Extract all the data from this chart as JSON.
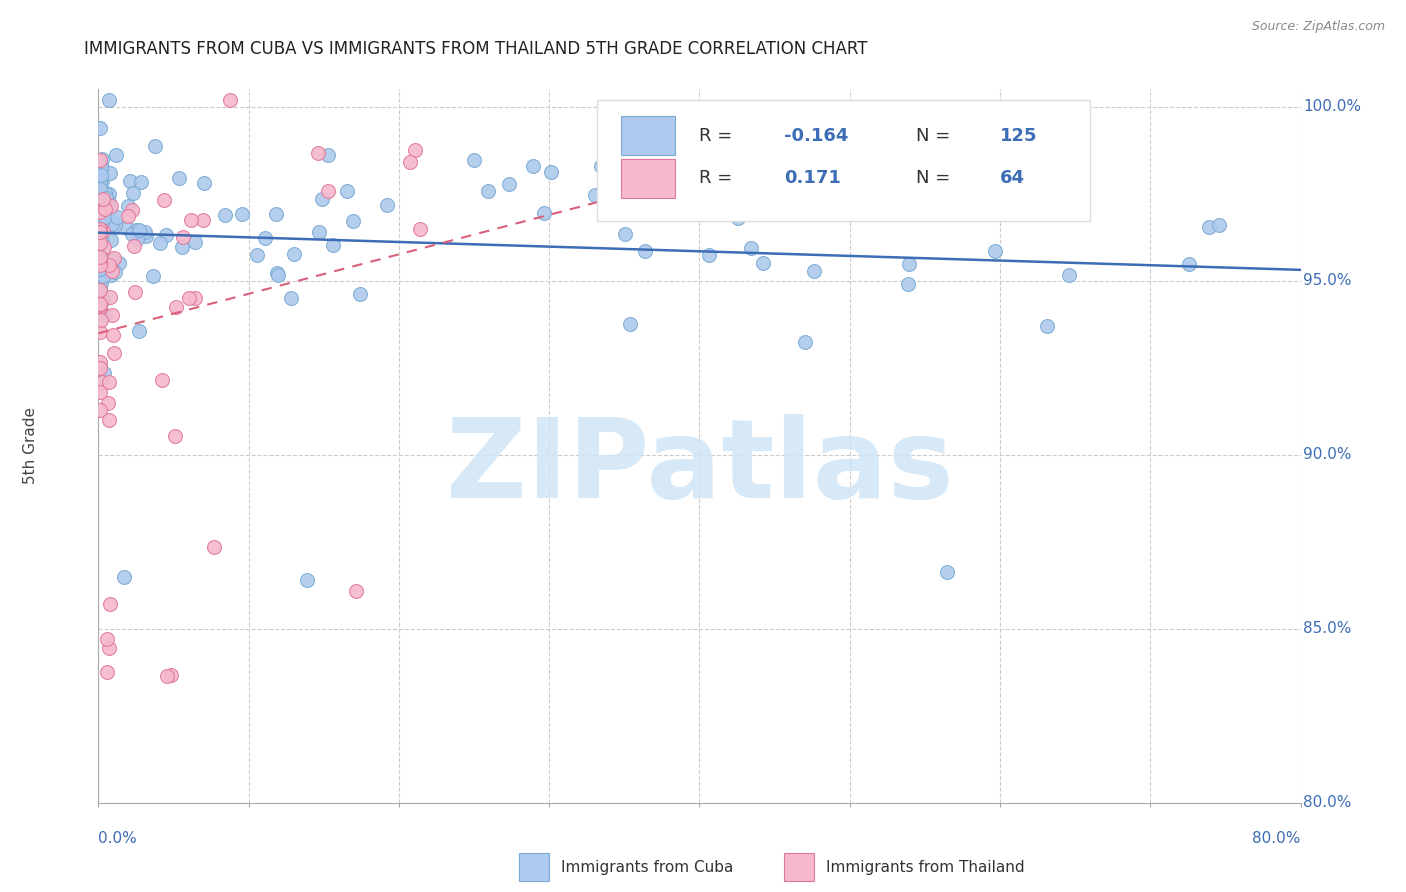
{
  "title": "IMMIGRANTS FROM CUBA VS IMMIGRANTS FROM THAILAND 5TH GRADE CORRELATION CHART",
  "source": "Source: ZipAtlas.com",
  "ylabel": "5th Grade",
  "x_min": 0.0,
  "x_max": 0.8,
  "y_min": 0.8,
  "y_max": 1.005,
  "y_ticks": [
    0.8,
    0.85,
    0.9,
    0.95,
    1.0
  ],
  "y_tick_labels": [
    "80.0%",
    "85.0%",
    "90.0%",
    "95.0%",
    "100.0%"
  ],
  "x_ticks": [
    0.0,
    0.1,
    0.2,
    0.3,
    0.4,
    0.5,
    0.6,
    0.7,
    0.8
  ],
  "cuba_color": "#adc9ed",
  "cuba_edge_color": "#7aaad4",
  "thailand_color": "#f5b8cc",
  "thailand_edge_color": "#e07898",
  "cuba_R": -0.164,
  "cuba_N": 125,
  "thailand_R": 0.171,
  "thailand_N": 64,
  "trend_blue_color": "#3d6db5",
  "trend_pink_color": "#d9607a",
  "watermark": "ZIPatlas",
  "watermark_color": "#d0e5f5",
  "background_color": "#ffffff",
  "legend_r1": "-0.164",
  "legend_n1": "125",
  "legend_r2": "0.171",
  "legend_n2": "64"
}
